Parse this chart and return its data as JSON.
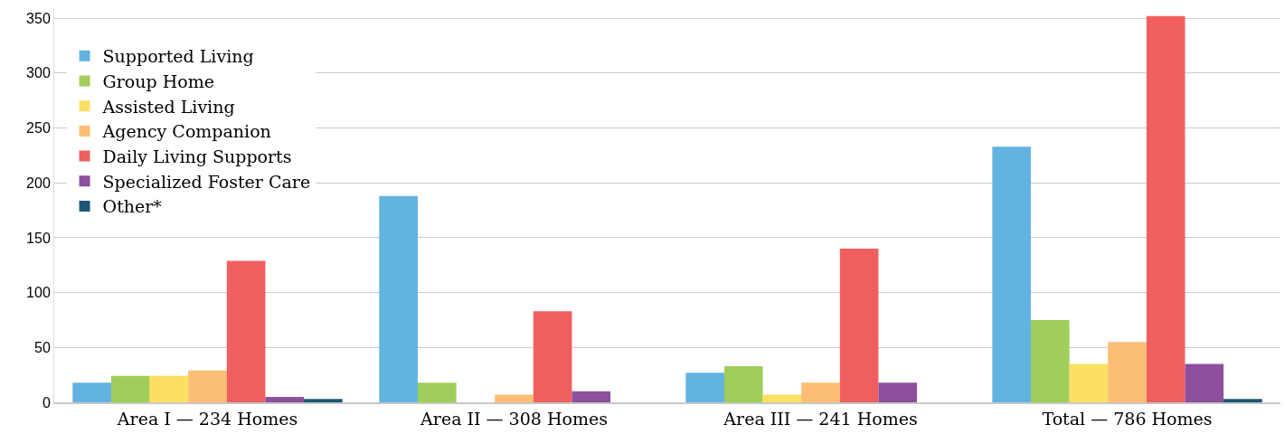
{
  "chart_data": {
    "type": "bar",
    "categories": [
      "Area I — 234 Homes",
      "Area II — 308 Homes",
      "Area III — 241 Homes",
      "Total — 786 Homes"
    ],
    "series": [
      {
        "name": "Supported Living",
        "color": "#62b3e0",
        "values": [
          18,
          188,
          27,
          233
        ]
      },
      {
        "name": "Group Home",
        "color": "#a1cd5b",
        "values": [
          24,
          18,
          33,
          75
        ]
      },
      {
        "name": "Assisted Living",
        "color": "#fbe062",
        "values": [
          24,
          0,
          7,
          35
        ]
      },
      {
        "name": "Agency Companion",
        "color": "#fcbe73",
        "values": [
          29,
          7,
          18,
          55
        ]
      },
      {
        "name": "Daily Living Supports",
        "color": "#f05f5f",
        "values": [
          129,
          83,
          140,
          352
        ]
      },
      {
        "name": "Specialized Foster Care",
        "color": "#8e4f9f",
        "values": [
          5,
          10,
          18,
          35
        ]
      },
      {
        "name": "Other*",
        "color": "#1d5676",
        "values": [
          3,
          0,
          0,
          3
        ]
      }
    ],
    "ylim": [
      0,
      360
    ],
    "yticks": [
      0,
      50,
      100,
      150,
      200,
      250,
      300,
      350
    ],
    "grid": "y",
    "legend": "top left"
  }
}
